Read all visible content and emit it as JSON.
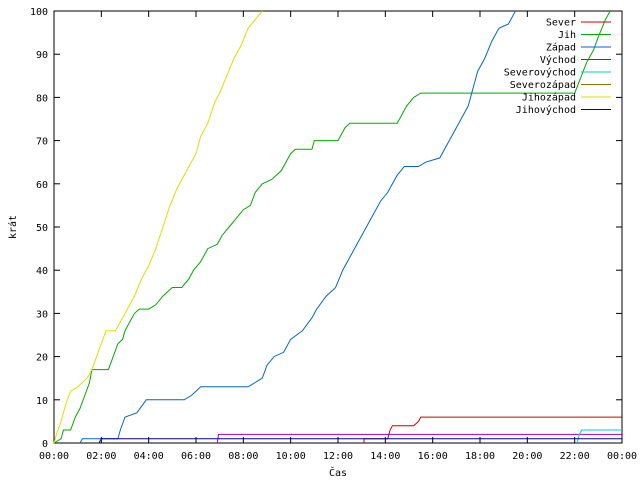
{
  "chart_data": {
    "type": "line",
    "xlabel": "Čas",
    "ylabel": "krát",
    "x_ticks": [
      "00:00",
      "02:00",
      "04:00",
      "06:00",
      "08:00",
      "10:00",
      "12:00",
      "14:00",
      "16:00",
      "18:00",
      "20:00",
      "22:00",
      "00:00"
    ],
    "y_ticks": [
      "0",
      "10",
      "20",
      "30",
      "40",
      "50",
      "60",
      "70",
      "80",
      "90",
      "100"
    ],
    "xlim": [
      0,
      24
    ],
    "ylim": [
      0,
      100
    ],
    "grid": false,
    "legend_position": "top-right",
    "series": [
      {
        "name": "Sever",
        "color": "#cc0000",
        "points": [
          [
            13.1,
            0
          ],
          [
            13.1,
            1
          ],
          [
            14.1,
            1
          ],
          [
            14.2,
            3
          ],
          [
            14.3,
            4
          ],
          [
            15.2,
            4
          ],
          [
            15.4,
            5
          ],
          [
            15.5,
            6
          ],
          [
            24,
            6
          ]
        ]
      },
      {
        "name": "Jih",
        "color": "#00aa00",
        "points": [
          [
            0,
            0
          ],
          [
            0.3,
            1
          ],
          [
            0.4,
            3
          ],
          [
            0.7,
            3
          ],
          [
            0.9,
            6
          ],
          [
            1.1,
            8
          ],
          [
            1.3,
            11
          ],
          [
            1.5,
            14
          ],
          [
            1.6,
            17
          ],
          [
            2.3,
            17
          ],
          [
            2.5,
            20
          ],
          [
            2.7,
            23
          ],
          [
            2.9,
            24
          ],
          [
            3.0,
            26
          ],
          [
            3.2,
            28
          ],
          [
            3.4,
            30
          ],
          [
            3.6,
            31
          ],
          [
            4.0,
            31
          ],
          [
            4.3,
            32
          ],
          [
            4.6,
            34
          ],
          [
            4.8,
            35
          ],
          [
            5.0,
            36
          ],
          [
            5.4,
            36
          ],
          [
            5.7,
            38
          ],
          [
            5.9,
            40
          ],
          [
            6.2,
            42
          ],
          [
            6.5,
            45
          ],
          [
            6.9,
            46
          ],
          [
            7.1,
            48
          ],
          [
            7.4,
            50
          ],
          [
            7.7,
            52
          ],
          [
            8.0,
            54
          ],
          [
            8.3,
            55
          ],
          [
            8.5,
            58
          ],
          [
            8.8,
            60
          ],
          [
            9.2,
            61
          ],
          [
            9.6,
            63
          ],
          [
            9.8,
            65
          ],
          [
            10.0,
            67
          ],
          [
            10.2,
            68
          ],
          [
            10.9,
            68
          ],
          [
            11.0,
            70
          ],
          [
            12.0,
            70
          ],
          [
            12.3,
            73
          ],
          [
            12.5,
            74
          ],
          [
            13.2,
            74
          ],
          [
            14.5,
            74
          ],
          [
            14.7,
            76
          ],
          [
            14.9,
            78
          ],
          [
            15.2,
            80
          ],
          [
            15.5,
            81
          ],
          [
            19.5,
            81
          ],
          [
            22.0,
            81
          ],
          [
            22.5,
            88
          ],
          [
            22.8,
            91
          ],
          [
            23.0,
            94
          ],
          [
            23.3,
            98
          ],
          [
            23.5,
            100
          ]
        ]
      },
      {
        "name": "Západ",
        "color": "#0066cc",
        "points": [
          [
            1.1,
            0
          ],
          [
            1.2,
            1
          ],
          [
            2.7,
            1
          ],
          [
            2.8,
            3
          ],
          [
            3.0,
            6
          ],
          [
            3.5,
            7
          ],
          [
            3.9,
            10
          ],
          [
            5.5,
            10
          ],
          [
            5.8,
            11
          ],
          [
            6.0,
            12
          ],
          [
            6.2,
            13
          ],
          [
            8.2,
            13
          ],
          [
            8.5,
            14
          ],
          [
            8.8,
            15
          ],
          [
            9.0,
            18
          ],
          [
            9.3,
            20
          ],
          [
            9.7,
            21
          ],
          [
            10.0,
            24
          ],
          [
            10.5,
            26
          ],
          [
            10.9,
            29
          ],
          [
            11.1,
            31
          ],
          [
            11.5,
            34
          ],
          [
            11.9,
            36
          ],
          [
            12.2,
            40
          ],
          [
            12.6,
            44
          ],
          [
            12.9,
            47
          ],
          [
            13.2,
            50
          ],
          [
            13.5,
            53
          ],
          [
            13.8,
            56
          ],
          [
            14.1,
            58
          ],
          [
            14.5,
            62
          ],
          [
            14.8,
            64
          ],
          [
            15.4,
            64
          ],
          [
            15.7,
            65
          ],
          [
            16.3,
            66
          ],
          [
            16.6,
            69
          ],
          [
            16.9,
            72
          ],
          [
            17.2,
            75
          ],
          [
            17.5,
            78
          ],
          [
            17.7,
            82
          ],
          [
            17.9,
            86
          ],
          [
            18.2,
            89
          ],
          [
            18.5,
            93
          ],
          [
            18.8,
            96
          ],
          [
            19.2,
            97
          ],
          [
            19.5,
            100
          ]
        ]
      },
      {
        "name": "Východ",
        "color": "#aa00aa",
        "points": [
          [
            6.9,
            0
          ],
          [
            6.95,
            2
          ],
          [
            24,
            2
          ]
        ]
      },
      {
        "name": "Severovýchod",
        "color": "#00cccc",
        "points": [
          [
            22.1,
            0
          ],
          [
            22.2,
            2
          ],
          [
            22.3,
            3
          ],
          [
            24,
            3
          ]
        ]
      },
      {
        "name": "Severozápad",
        "color": "#996600",
        "points": []
      },
      {
        "name": "Jihozápad",
        "color": "#dddd00",
        "points": [
          [
            0,
            0
          ],
          [
            0.1,
            2
          ],
          [
            0.3,
            5
          ],
          [
            0.5,
            9
          ],
          [
            0.7,
            12
          ],
          [
            1.0,
            13
          ],
          [
            1.2,
            14
          ],
          [
            1.4,
            15
          ],
          [
            1.6,
            17
          ],
          [
            1.8,
            20
          ],
          [
            2.0,
            23
          ],
          [
            2.2,
            26
          ],
          [
            2.6,
            26
          ],
          [
            2.8,
            28
          ],
          [
            3.1,
            31
          ],
          [
            3.4,
            34
          ],
          [
            3.7,
            38
          ],
          [
            4.0,
            41
          ],
          [
            4.3,
            45
          ],
          [
            4.6,
            50
          ],
          [
            4.9,
            55
          ],
          [
            5.2,
            59
          ],
          [
            5.5,
            62
          ],
          [
            5.7,
            64
          ],
          [
            6.0,
            67
          ],
          [
            6.2,
            71
          ],
          [
            6.5,
            74
          ],
          [
            6.8,
            79
          ],
          [
            7.0,
            81
          ],
          [
            7.3,
            85
          ],
          [
            7.6,
            89
          ],
          [
            7.9,
            92
          ],
          [
            8.2,
            96
          ],
          [
            8.5,
            98
          ],
          [
            8.8,
            100
          ]
        ]
      },
      {
        "name": "Jihovýchod",
        "color": "#000099",
        "points": [
          [
            1.9,
            0
          ],
          [
            2.0,
            1
          ],
          [
            24,
            1
          ]
        ]
      }
    ]
  }
}
